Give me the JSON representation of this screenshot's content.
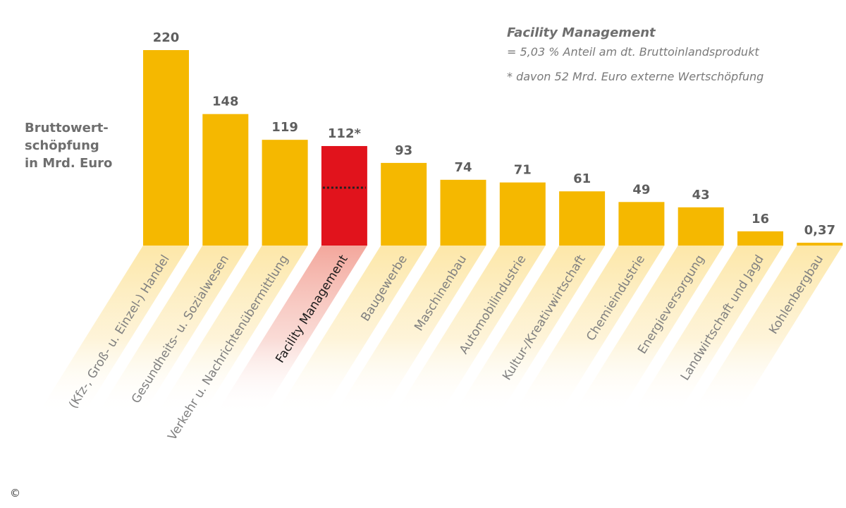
{
  "colors": {
    "bar": "#f5b800",
    "highlight": "#e1131c",
    "band": "#fdeec2",
    "band_highlight": "#f4b3ab"
  },
  "chart_data": {
    "type": "bar",
    "ylabel": [
      "Bruttowert-",
      "schöpfung",
      "in Mrd. Euro"
    ],
    "categories": [
      "(Kfz-, Groß- u. Einzel-) Handel",
      "Gesundheits- u. Sozialwesen",
      "Verkehr u. Nachrichtenübermittlung",
      "Facility Management",
      "Baugewerbe",
      "Maschinenbau",
      "Automobilindustrie",
      "Kultur-/Kreativwirtschaft",
      "Chemieindustrie",
      "Energieversorgung",
      "Landwirtschaft und Jagd",
      "Kohlenbergbau"
    ],
    "values": [
      220,
      148,
      119,
      112,
      93,
      74,
      71,
      61,
      49,
      43,
      16,
      0.37
    ],
    "value_labels": [
      "220",
      "148",
      "119",
      "112*",
      "93",
      "74",
      "71",
      "61",
      "49",
      "43",
      "16",
      "0,37"
    ],
    "highlight_index": 3,
    "external_share_value": 52,
    "notes": {
      "title": "Facility Management",
      "line1": "= 5,03 % Anteil am dt. Bruttoinlandsprodukt",
      "line2": "* davon 52 Mrd. Euro externe Wertschöpfung"
    },
    "copyright": "©"
  }
}
